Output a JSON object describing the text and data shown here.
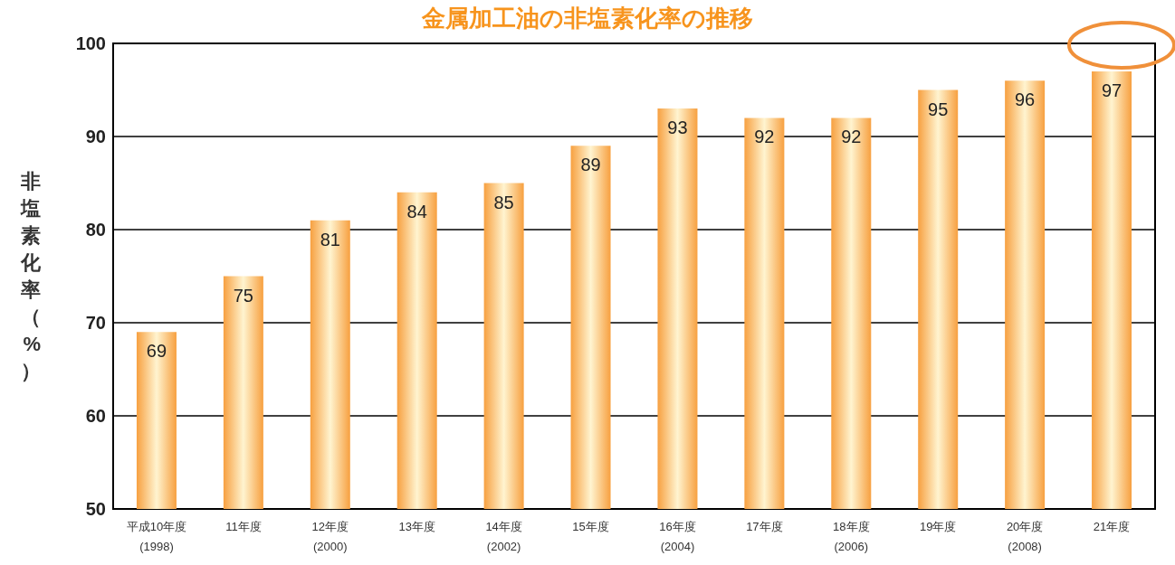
{
  "chart_data": {
    "type": "bar",
    "title": "金属加工油の非塩素化率の推移",
    "ylabel": "非塩素化率（%）",
    "categories": [
      "平成10年度\n(1998)",
      "11年度",
      "12年度\n(2000)",
      "13年度",
      "14年度\n(2002)",
      "15年度",
      "16年度\n(2004)",
      "17年度",
      "18年度\n(2006)",
      "19年度",
      "20年度\n(2008)",
      "21年度"
    ],
    "values": [
      69,
      75,
      81,
      84,
      85,
      89,
      93,
      92,
      92,
      95,
      96,
      97
    ],
    "color": "#f7a040",
    "ylim": [
      50,
      100
    ],
    "yticks": [
      50,
      60,
      70,
      80,
      90,
      100
    ],
    "grid": "y",
    "data_labels": true
  }
}
